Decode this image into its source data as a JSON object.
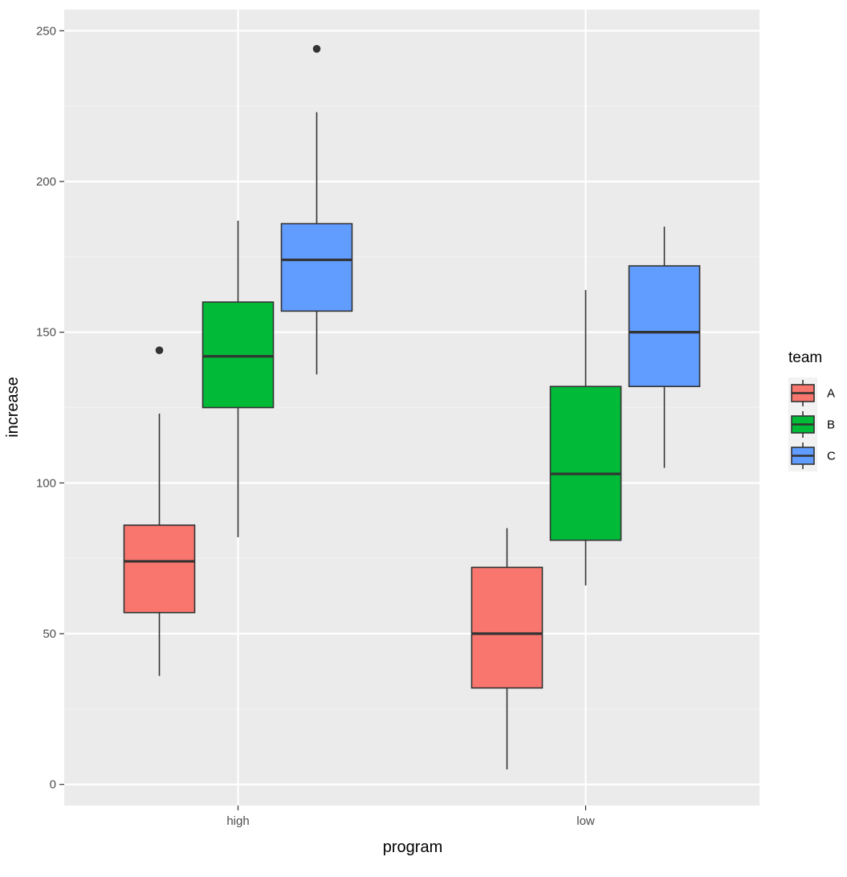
{
  "chart_data": {
    "type": "boxplot",
    "title": "",
    "xlabel": "program",
    "ylabel": "increase",
    "categories": [
      "high",
      "low"
    ],
    "ylim": [
      -7,
      257
    ],
    "yticks": [
      0,
      50,
      100,
      150,
      200,
      250
    ],
    "grid": true,
    "legend": {
      "title": "team",
      "placement": "right",
      "entries": [
        "A",
        "B",
        "C"
      ]
    },
    "series": [
      {
        "name": "A",
        "color": "#F8766D",
        "boxes": [
          {
            "category": "high",
            "whisker_low": 36,
            "q1": 57,
            "median": 74,
            "q3": 86,
            "whisker_high": 123,
            "outliers": [
              144
            ]
          },
          {
            "category": "low",
            "whisker_low": 5,
            "q1": 32,
            "median": 50,
            "q3": 72,
            "whisker_high": 85,
            "outliers": []
          }
        ]
      },
      {
        "name": "B",
        "color": "#00BA38",
        "boxes": [
          {
            "category": "high",
            "whisker_low": 82,
            "q1": 125,
            "median": 142,
            "q3": 160,
            "whisker_high": 187,
            "outliers": []
          },
          {
            "category": "low",
            "whisker_low": 66,
            "q1": 81,
            "median": 103,
            "q3": 132,
            "whisker_high": 164,
            "outliers": []
          }
        ]
      },
      {
        "name": "C",
        "color": "#619CFF",
        "boxes": [
          {
            "category": "high",
            "whisker_low": 136,
            "q1": 157,
            "median": 174,
            "q3": 186,
            "whisker_high": 223,
            "outliers": [
              244
            ]
          },
          {
            "category": "low",
            "whisker_low": 105,
            "q1": 132,
            "median": 150,
            "q3": 172,
            "whisker_high": 185,
            "outliers": []
          }
        ]
      }
    ],
    "colors": {
      "panel_background": "#EBEBEB",
      "grid_major": "#FFFFFF",
      "box_outline": "#333333"
    }
  }
}
